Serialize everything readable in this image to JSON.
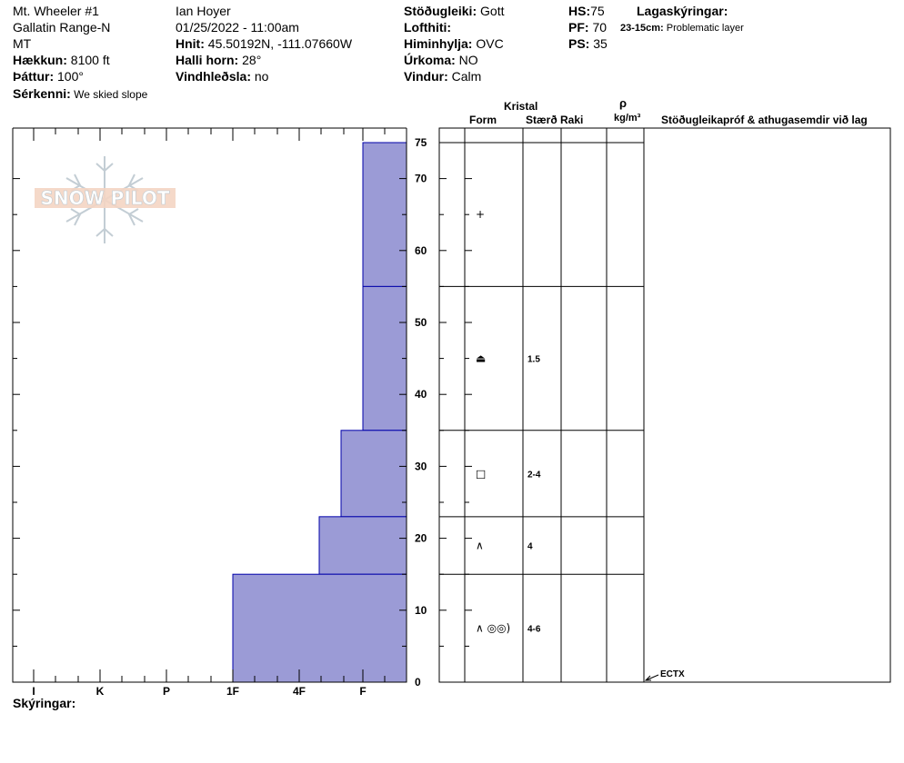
{
  "header": {
    "col1": {
      "line1": "Mt. Wheeler #1",
      "line2": "Gallatin Range-N",
      "line3": "MT",
      "elevation_label": "Hækkun:",
      "elevation_value": " 8100 ft",
      "aspect_label": "Þáttur:",
      "aspect_value": " 100°",
      "features_label": "Sérkenni:",
      "features_value": " We skied slope"
    },
    "col2": {
      "observer": "Ian Hoyer",
      "datetime": "01/25/2022 - 11:00am",
      "coords_label": "Hnit:",
      "coords_value": " 45.50192N, -111.07660W",
      "slope_label": "Halli horn:",
      "slope_value": " 28°",
      "wind_loading_label": "Vindhleðsla:",
      "wind_loading_value": " no"
    },
    "col3": {
      "stability_label": "Stöðugleiki:",
      "stability_value": " Gott",
      "air_temp_label": "Lofthiti:",
      "air_temp_value": "",
      "sky_label": "Himinhylja:",
      "sky_value": " OVC",
      "precip_label": "Úrkoma:",
      "precip_value": " NO",
      "wind_label": "Vindur:",
      "wind_value": "  Calm"
    },
    "col4": {
      "hs_label": "HS:",
      "hs_value": "75",
      "pf_label": "PF:",
      "pf_value": " 70",
      "ps_label": "PS:",
      "ps_value": " 35"
    },
    "col5": {
      "layer_notes_label": "Lagaskýringar:",
      "note_depth": "23-15cm:",
      "note_text": " Problematic layer"
    }
  },
  "logo": {
    "text": "SNOW PILOT"
  },
  "table_headers": {
    "crystal": "Kristal",
    "form": "Form",
    "size": "Stærð",
    "moisture": "Raki",
    "rho": "ρ",
    "density_unit": "kg/m³",
    "tests": "Stöðugleikapróf & athugasemdir við lag"
  },
  "footer": {
    "legend_label": "Skýringar:"
  },
  "colors": {
    "bar_fill": "#9b9bd6",
    "bar_stroke": "#0000aa",
    "logo_band": "#f4d5c4"
  },
  "chart_data": {
    "type": "bar",
    "description_hardness_axis": [
      "I",
      "K",
      "P",
      "1F",
      "4F",
      "F"
    ],
    "depth_ticks": [
      0,
      10,
      20,
      30,
      40,
      50,
      60,
      70,
      75
    ],
    "depth_range": [
      0,
      75
    ],
    "layers": [
      {
        "top": 75,
        "bottom": 55,
        "hardness": "F",
        "form_symbol": "+",
        "size": ""
      },
      {
        "top": 55,
        "bottom": 35,
        "hardness": "F",
        "form_symbol": "⏏",
        "size": "1.5"
      },
      {
        "top": 35,
        "bottom": 23,
        "hardness": "F+",
        "form_symbol": "□",
        "size": "2-4"
      },
      {
        "top": 23,
        "bottom": 15,
        "hardness": "4F+",
        "form_symbol": "∧",
        "size": "4"
      },
      {
        "top": 15,
        "bottom": 0,
        "hardness": "1F",
        "form_symbol": "∧ ◎◎)",
        "size": "4-6"
      }
    ],
    "tests": [
      {
        "depth": 0,
        "label": "ECTX"
      }
    ]
  }
}
